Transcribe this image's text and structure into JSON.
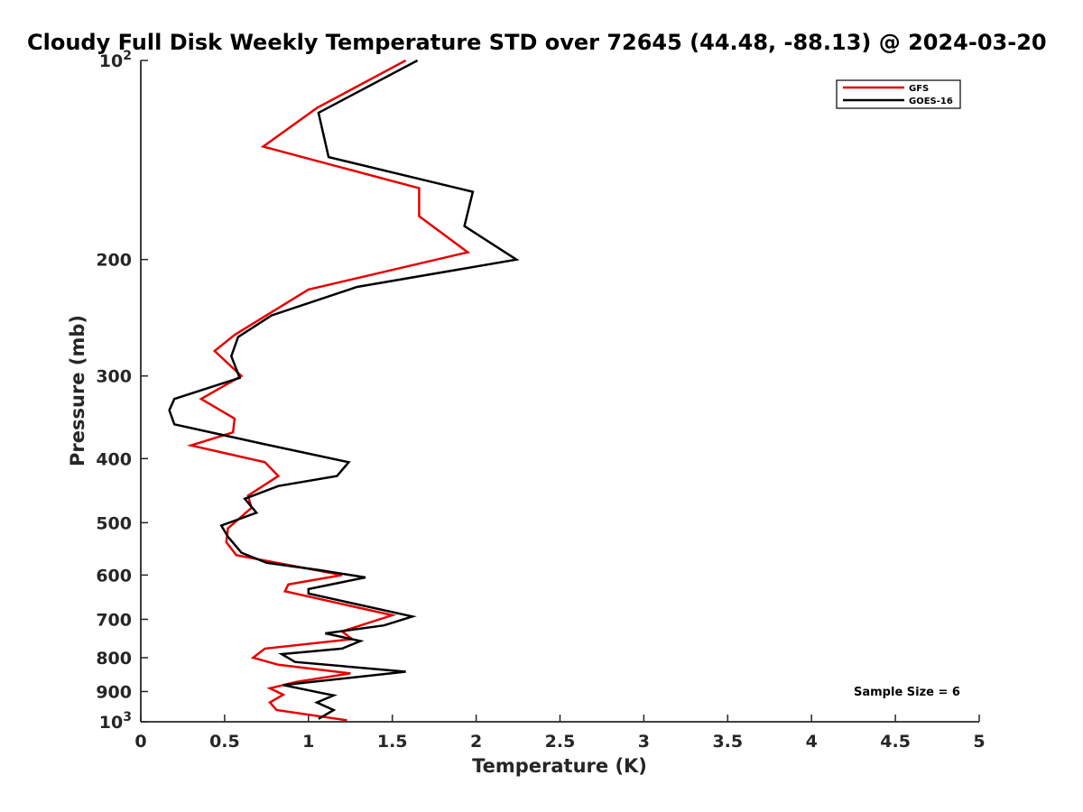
{
  "chart_data": {
    "type": "line",
    "title": "Cloudy Full Disk Weekly Temperature STD over 72645 (44.48, -88.13) @ 2024-03-20",
    "xlabel": "Temperature (K)",
    "ylabel": "Pressure (mb)",
    "xlim": [
      0,
      5
    ],
    "ylim": [
      100,
      1000
    ],
    "y_scale": "log",
    "y_reversed": true,
    "x_ticks": [
      "0",
      "0.5",
      "1",
      "1.5",
      "2",
      "2.5",
      "3",
      "3.5",
      "4",
      "4.5",
      "5"
    ],
    "y_ticks": [
      {
        "value": 100,
        "base": "10",
        "exp": "2"
      },
      {
        "value": 200,
        "label": "200"
      },
      {
        "value": 300,
        "label": "300"
      },
      {
        "value": 400,
        "label": "400"
      },
      {
        "value": 500,
        "label": "500"
      },
      {
        "value": 600,
        "label": "600"
      },
      {
        "value": 700,
        "label": "700"
      },
      {
        "value": 800,
        "label": "800"
      },
      {
        "value": 900,
        "label": "900"
      },
      {
        "value": 1000,
        "base": "10",
        "exp": "3"
      }
    ],
    "legend_position": "top-right",
    "annotation": "Sample Size = 6",
    "grid": false,
    "series": [
      {
        "name": "GFS",
        "color": "#e60000",
        "points": [
          [
            1.58,
            100
          ],
          [
            1.05,
            118
          ],
          [
            0.73,
            135
          ],
          [
            1.66,
            156
          ],
          [
            1.66,
            172
          ],
          [
            1.95,
            195
          ],
          [
            1.0,
            222
          ],
          [
            0.56,
            260
          ],
          [
            0.44,
            275
          ],
          [
            0.6,
            300
          ],
          [
            0.36,
            325
          ],
          [
            0.56,
            348
          ],
          [
            0.55,
            365
          ],
          [
            0.3,
            382
          ],
          [
            0.74,
            405
          ],
          [
            0.82,
            425
          ],
          [
            0.64,
            455
          ],
          [
            0.66,
            475
          ],
          [
            0.52,
            510
          ],
          [
            0.51,
            535
          ],
          [
            0.57,
            560
          ],
          [
            1.2,
            600
          ],
          [
            0.88,
            620
          ],
          [
            0.86,
            635
          ],
          [
            1.5,
            690
          ],
          [
            1.2,
            730
          ],
          [
            1.26,
            750
          ],
          [
            0.74,
            775
          ],
          [
            0.67,
            800
          ],
          [
            0.82,
            820
          ],
          [
            1.25,
            845
          ],
          [
            0.93,
            870
          ],
          [
            0.77,
            890
          ],
          [
            0.85,
            910
          ],
          [
            0.77,
            935
          ],
          [
            0.81,
            960
          ],
          [
            1.23,
            995
          ]
        ]
      },
      {
        "name": "GOES-16",
        "color": "#000000",
        "points": [
          [
            1.65,
            100
          ],
          [
            1.06,
            120
          ],
          [
            1.12,
            140
          ],
          [
            1.98,
            158
          ],
          [
            1.93,
            178
          ],
          [
            2.24,
            200
          ],
          [
            1.29,
            220
          ],
          [
            0.78,
            243
          ],
          [
            0.58,
            262
          ],
          [
            0.54,
            280
          ],
          [
            0.59,
            302
          ],
          [
            0.2,
            325
          ],
          [
            0.17,
            338
          ],
          [
            0.2,
            355
          ],
          [
            0.73,
            380
          ],
          [
            1.24,
            405
          ],
          [
            1.17,
            425
          ],
          [
            0.82,
            440
          ],
          [
            0.62,
            460
          ],
          [
            0.69,
            483
          ],
          [
            0.48,
            505
          ],
          [
            0.52,
            525
          ],
          [
            0.6,
            555
          ],
          [
            0.75,
            575
          ],
          [
            1.07,
            590
          ],
          [
            1.34,
            605
          ],
          [
            1.0,
            630
          ],
          [
            1.0,
            640
          ],
          [
            1.62,
            693
          ],
          [
            1.45,
            715
          ],
          [
            1.1,
            735
          ],
          [
            1.31,
            755
          ],
          [
            1.2,
            775
          ],
          [
            0.84,
            790
          ],
          [
            0.92,
            812
          ],
          [
            1.58,
            840
          ],
          [
            0.85,
            880
          ],
          [
            1.08,
            905
          ],
          [
            1.15,
            912
          ],
          [
            1.05,
            935
          ],
          [
            1.15,
            960
          ],
          [
            1.06,
            990
          ]
        ]
      }
    ]
  }
}
